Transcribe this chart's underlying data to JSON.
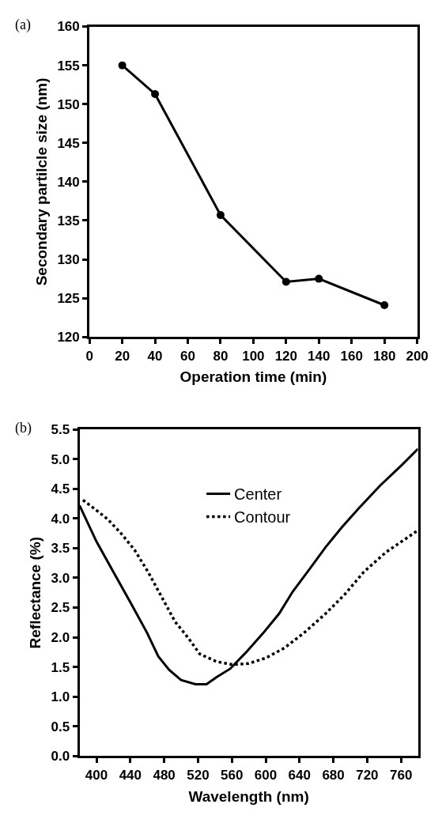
{
  "chart_data": [
    {
      "type": "line",
      "xlabel": "Operation time (min)",
      "ylabel": "Secondary partilcle size (nm)",
      "annotations": [
        "(a)"
      ],
      "x": [
        20,
        40,
        80,
        120,
        140,
        180
      ],
      "series": [
        {
          "color": "#000000",
          "values": [
            155,
            151.3,
            135.7,
            127.1,
            127.5,
            124.1
          ]
        }
      ],
      "xlim": [
        0,
        200
      ],
      "xticks": [
        0,
        20,
        40,
        60,
        80,
        100,
        120,
        140,
        160,
        180,
        200
      ],
      "ylim": [
        120,
        160
      ],
      "yticks": [
        120,
        125,
        130,
        135,
        140,
        145,
        150,
        155,
        160
      ],
      "marker": "circle",
      "line_style": "solid",
      "legend": false
    },
    {
      "type": "line",
      "xlabel": "Wavelength (nm)",
      "ylabel": "Reflectance (%)",
      "annotations": [
        "(b)"
      ],
      "series": [
        {
          "name": "Center",
          "color": "#000000",
          "line_style": "solid",
          "x": [
            380,
            400,
            420,
            440,
            460,
            473,
            486,
            500,
            517,
            530,
            542,
            558,
            577,
            597,
            616,
            632,
            652,
            671,
            690,
            710,
            735,
            761,
            780
          ],
          "values": [
            4.22,
            3.61,
            3.1,
            2.59,
            2.07,
            1.68,
            1.45,
            1.28,
            1.21,
            1.21,
            1.33,
            1.47,
            1.75,
            2.07,
            2.4,
            2.77,
            3.15,
            3.52,
            3.85,
            4.17,
            4.55,
            4.9,
            5.17
          ]
        },
        {
          "name": "Contour",
          "color": "#000000",
          "line_style": "dotted",
          "x": [
            384,
            397,
            413,
            429,
            445,
            461,
            477,
            493,
            509,
            522,
            542,
            561,
            580,
            600,
            622,
            645,
            671,
            694,
            716,
            742,
            780
          ],
          "values": [
            4.31,
            4.17,
            3.99,
            3.75,
            3.47,
            3.1,
            2.68,
            2.26,
            1.98,
            1.72,
            1.59,
            1.54,
            1.56,
            1.65,
            1.82,
            2.07,
            2.4,
            2.73,
            3.1,
            3.43,
            3.8
          ]
        }
      ],
      "xlim": [
        380,
        780
      ],
      "xticks": [
        400,
        440,
        480,
        520,
        560,
        600,
        640,
        680,
        720,
        760
      ],
      "ylim": [
        0,
        5.5
      ],
      "yticks": [
        {
          "value": 0,
          "label": "0.0"
        },
        0.5,
        {
          "value": 1,
          "label": "1.0"
        },
        1.5,
        {
          "value": 2,
          "label": "2.0"
        },
        2.5,
        {
          "value": 3,
          "label": "3.0"
        },
        3.5,
        {
          "value": 4,
          "label": "4.0"
        },
        4.5,
        {
          "value": 5,
          "label": "5.0"
        },
        5.5
      ],
      "marker": "none",
      "legend": "top"
    }
  ]
}
